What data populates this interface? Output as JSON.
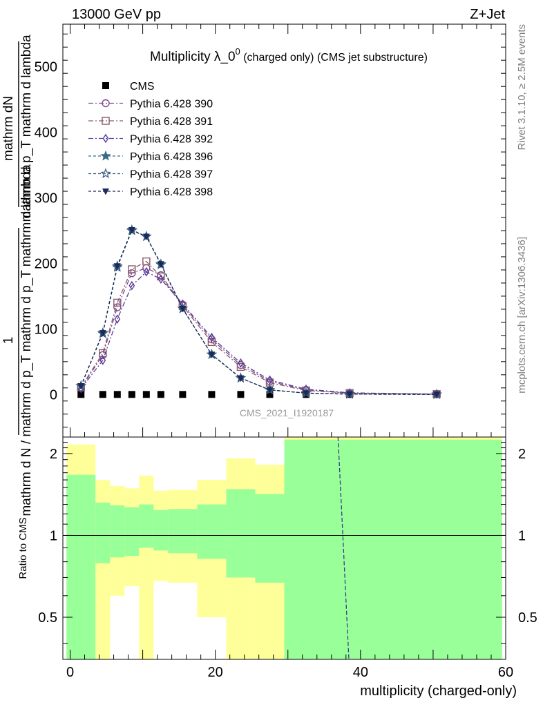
{
  "header": {
    "left": "13000 GeV pp",
    "right": "Z+Jet"
  },
  "side_labels": {
    "rivet": "Rivet 3.1.10, ≥ 2.5M events",
    "mcplots": "mcplots.cern.ch [arXiv:1306.3436]"
  },
  "chart_data": [
    {
      "type": "scatter",
      "title_main": "Multiplicity λ_0",
      "title_sup": "0",
      "title_rest": " (charged only) (CMS jet substructure)",
      "ylabel_line1_num": "mathrm dN",
      "ylabel_line1_den": "mathrm d p_T mathrm d lambda",
      "ylabel_one": "1",
      "ylabel_line2_den": "mathrm d N / mathrm d p_T mathrm d p_T mathrm d lambda",
      "ylim": [
        -65,
        565
      ],
      "xlim": [
        -1,
        60
      ],
      "yticks": [
        0,
        100,
        200,
        300,
        400,
        500
      ],
      "watermark": "CMS_2021_I1920187",
      "legend_position": "top-left",
      "x": [
        1.5,
        4.5,
        6.5,
        8.5,
        10.5,
        12.5,
        15.5,
        19.5,
        23.5,
        27.5,
        32.5,
        38.5,
        50.5
      ],
      "series": [
        {
          "name": "CMS",
          "color": "#000000",
          "marker": "square-filled",
          "dash": "none",
          "values": [
            0,
            0,
            0,
            0,
            0,
            0,
            0,
            0,
            0,
            0,
            0,
            0,
            0
          ]
        },
        {
          "name": "Pythia 6.428 390",
          "color": "#7a4a8a",
          "marker": "circle",
          "dash": "dashdot",
          "values": [
            10,
            60,
            133,
            185,
            193,
            182,
            137,
            84,
            45,
            20,
            7,
            2,
            0.5
          ]
        },
        {
          "name": "Pythia 6.428 391",
          "color": "#8a5a6a",
          "marker": "square",
          "dash": "dashdot",
          "values": [
            11,
            63,
            140,
            191,
            203,
            180,
            135,
            80,
            42,
            18,
            6,
            2,
            0.5
          ]
        },
        {
          "name": "Pythia 6.428 392",
          "color": "#5a3a9a",
          "marker": "diamond",
          "dash": "dashdot",
          "values": [
            9,
            52,
            115,
            166,
            187,
            176,
            138,
            87,
            48,
            22,
            8,
            2.5,
            0.5
          ]
        },
        {
          "name": "Pythia 6.428 396",
          "color": "#3a6a8a",
          "marker": "star-filled",
          "dash": "dash",
          "values": [
            13,
            94,
            196,
            251,
            241,
            199,
            131,
            61,
            25,
            7,
            2,
            0.5,
            0.1
          ]
        },
        {
          "name": "Pythia 6.428 397",
          "color": "#3a5a7a",
          "marker": "star",
          "dash": "dash",
          "values": [
            13,
            93,
            194,
            250,
            241,
            198,
            131,
            61,
            25,
            7,
            2,
            0.5,
            0.1
          ]
        },
        {
          "name": "Pythia 6.428 398",
          "color": "#1a2a5a",
          "marker": "triangle-down-filled",
          "dash": "dash",
          "values": [
            13,
            94,
            196,
            251,
            241,
            199,
            131,
            61,
            25,
            7,
            2,
            0.5,
            0.1
          ]
        }
      ]
    },
    {
      "type": "area",
      "ylabel": "Ratio to CMS",
      "xlabel": "multiplicity (charged-only)",
      "xlim": [
        -1,
        60
      ],
      "ylim": [
        0.35,
        2.3
      ],
      "xticks": [
        0,
        20,
        40,
        60
      ],
      "yticks": [
        0.5,
        1,
        2
      ],
      "band_colors": {
        "inner": "#99ff99",
        "outer": "#ffff99"
      },
      "bins": [
        {
          "x": [
            -0.5,
            3.5
          ],
          "outer": [
            0.35,
            2.16
          ],
          "inner": [
            0.35,
            1.67
          ]
        },
        {
          "x": [
            3.5,
            5.5
          ],
          "outer": [
            0.35,
            1.6
          ],
          "inner": [
            0.79,
            1.32
          ]
        },
        {
          "x": [
            5.5,
            7.5
          ],
          "outer": [
            0.6,
            1.52
          ],
          "inner": [
            0.83,
            1.29
          ]
        },
        {
          "x": [
            7.5,
            9.5
          ],
          "outer": [
            0.65,
            1.49
          ],
          "inner": [
            0.84,
            1.27
          ]
        },
        {
          "x": [
            9.5,
            11.5
          ],
          "outer": [
            0.35,
            1.66
          ],
          "inner": [
            0.9,
            1.3
          ]
        },
        {
          "x": [
            11.5,
            13.5
          ],
          "outer": [
            0.68,
            1.46
          ],
          "inner": [
            0.88,
            1.24
          ]
        },
        {
          "x": [
            13.5,
            17.5
          ],
          "outer": [
            0.67,
            1.47
          ],
          "inner": [
            0.86,
            1.25
          ]
        },
        {
          "x": [
            17.5,
            21.5
          ],
          "outer": [
            0.5,
            1.6
          ],
          "inner": [
            0.82,
            1.3
          ]
        },
        {
          "x": [
            21.5,
            25.5
          ],
          "outer": [
            0.35,
            1.92
          ],
          "inner": [
            0.7,
            1.48
          ]
        },
        {
          "x": [
            25.5,
            29.5
          ],
          "outer": [
            0.35,
            1.82
          ],
          "inner": [
            0.67,
            1.42
          ]
        },
        {
          "x": [
            29.5,
            59.5
          ],
          "outer": [
            0.35,
            2.3
          ],
          "inner": [
            0.35,
            2.25
          ]
        }
      ],
      "ratio_line": {
        "x": [
          36.9,
          38.4
        ],
        "y": [
          2.3,
          0.35
        ],
        "color": "#3a3a8a"
      }
    }
  ]
}
